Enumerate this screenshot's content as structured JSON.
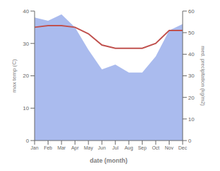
{
  "chart_data": {
    "type": "line",
    "xlabel": "date (month)",
    "ylabel": "max temp (C)",
    "y2label": "med. precipitation (kg/m2)",
    "categories": [
      "Jan",
      "Feb",
      "Mar",
      "Apr",
      "May",
      "Jun",
      "Jul",
      "Aug",
      "Sep",
      "Oct",
      "Nov",
      "Dec"
    ],
    "series": [
      {
        "type": "area",
        "color": "#aabbee",
        "values": [
          38,
          37,
          39,
          35,
          28,
          22,
          23.5,
          21,
          21,
          26,
          34,
          36
        ]
      },
      {
        "type": "line",
        "color": "#c0504d",
        "values": [
          35,
          35.5,
          35.5,
          35,
          33,
          29.5,
          28.5,
          28.5,
          28.5,
          30,
          34,
          34
        ]
      }
    ],
    "ylim": [
      0,
      40
    ],
    "yticks": [
      0,
      10,
      20,
      30,
      40
    ],
    "y2lim": [
      0,
      60
    ],
    "y2ticks": [
      0,
      10,
      20,
      30,
      40,
      50,
      60
    ],
    "grid": false
  }
}
